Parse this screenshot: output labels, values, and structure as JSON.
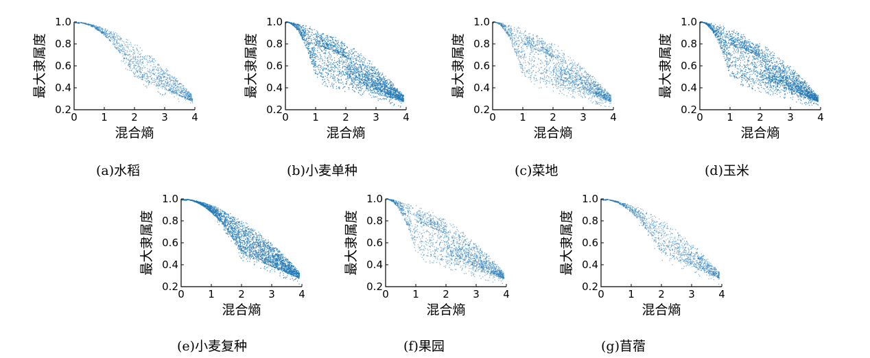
{
  "figure": {
    "colors": {
      "points": "#1f77b4",
      "axis": "#000000"
    }
  },
  "chart_data": [
    {
      "id": "a",
      "type": "scatter",
      "caption": "(a)水稻",
      "xlabel": "混合熵",
      "ylabel": "最大隶属度",
      "xlim": [
        0,
        4
      ],
      "ylim": [
        0.2,
        1.0
      ],
      "xticks": [
        0,
        1,
        2,
        3,
        4
      ],
      "yticks": [
        0.2,
        0.4,
        0.6,
        0.8,
        1.0
      ],
      "grid": false,
      "kneeEntropy": 2.0,
      "kneeMembership": 0.5,
      "density": "sparse"
    },
    {
      "id": "b",
      "type": "scatter",
      "caption": "(b)小麦单种",
      "xlabel": "混合熵",
      "ylabel": "最大隶属度",
      "xlim": [
        0,
        4
      ],
      "ylim": [
        0.2,
        1.0
      ],
      "xticks": [
        0,
        1,
        2,
        3,
        4
      ],
      "yticks": [
        0.2,
        0.4,
        0.6,
        0.8,
        1.0
      ],
      "grid": false,
      "kneeEntropy": 1.0,
      "kneeMembership": 0.5,
      "secondaryKneeEntropy": 2.0,
      "density": "dense"
    },
    {
      "id": "c",
      "type": "scatter",
      "caption": "(c)菜地",
      "xlabel": "混合熵",
      "ylabel": "最大隶属度",
      "xlim": [
        0,
        4
      ],
      "ylim": [
        0.2,
        1.0
      ],
      "xticks": [
        0,
        1,
        2,
        3,
        4
      ],
      "yticks": [
        0.2,
        0.4,
        0.6,
        0.8,
        1.0
      ],
      "grid": false,
      "kneeEntropy": 1.0,
      "kneeMembership": 0.5,
      "secondaryKneeEntropy": 2.0,
      "density": "medium"
    },
    {
      "id": "d",
      "type": "scatter",
      "caption": "(d)玉米",
      "xlabel": "混合熵",
      "ylabel": "最大隶属度",
      "xlim": [
        0,
        4
      ],
      "ylim": [
        0.2,
        1.0
      ],
      "xticks": [
        0,
        1,
        2,
        3,
        4
      ],
      "yticks": [
        0.2,
        0.4,
        0.6,
        0.8,
        1.0
      ],
      "grid": false,
      "kneeEntropy": 1.0,
      "kneeMembership": 0.5,
      "secondaryKneeEntropy": 2.0,
      "density": "dense"
    },
    {
      "id": "e",
      "type": "scatter",
      "caption": "(e)小麦复种",
      "xlabel": "混合熵",
      "ylabel": "最大隶属度",
      "xlim": [
        0,
        4
      ],
      "ylim": [
        0.2,
        1.0
      ],
      "xticks": [
        0,
        1,
        2,
        3,
        4
      ],
      "yticks": [
        0.2,
        0.4,
        0.6,
        0.8,
        1.0
      ],
      "grid": false,
      "kneeEntropy": 2.0,
      "kneeMembership": 0.5,
      "density": "dense"
    },
    {
      "id": "f",
      "type": "scatter",
      "caption": "(f)果园",
      "xlabel": "混合熵",
      "ylabel": "最大隶属度",
      "xlim": [
        0,
        4
      ],
      "ylim": [
        0.2,
        1.0
      ],
      "xticks": [
        0,
        1,
        2,
        3,
        4
      ],
      "yticks": [
        0.2,
        0.4,
        0.6,
        0.8,
        1.0
      ],
      "grid": false,
      "kneeEntropy": 1.0,
      "kneeMembership": 0.5,
      "secondaryKneeEntropy": 2.0,
      "density": "medium"
    },
    {
      "id": "g",
      "type": "scatter",
      "caption": "(g)苜蓿",
      "xlabel": "混合熵",
      "ylabel": "最大隶属度",
      "xlim": [
        0,
        4
      ],
      "ylim": [
        0.2,
        1.0
      ],
      "xticks": [
        0,
        1,
        2,
        3,
        4
      ],
      "yticks": [
        0.2,
        0.4,
        0.6,
        0.8,
        1.0
      ],
      "grid": false,
      "kneeEntropy": 2.0,
      "kneeMembership": 0.5,
      "density": "sparse"
    }
  ]
}
